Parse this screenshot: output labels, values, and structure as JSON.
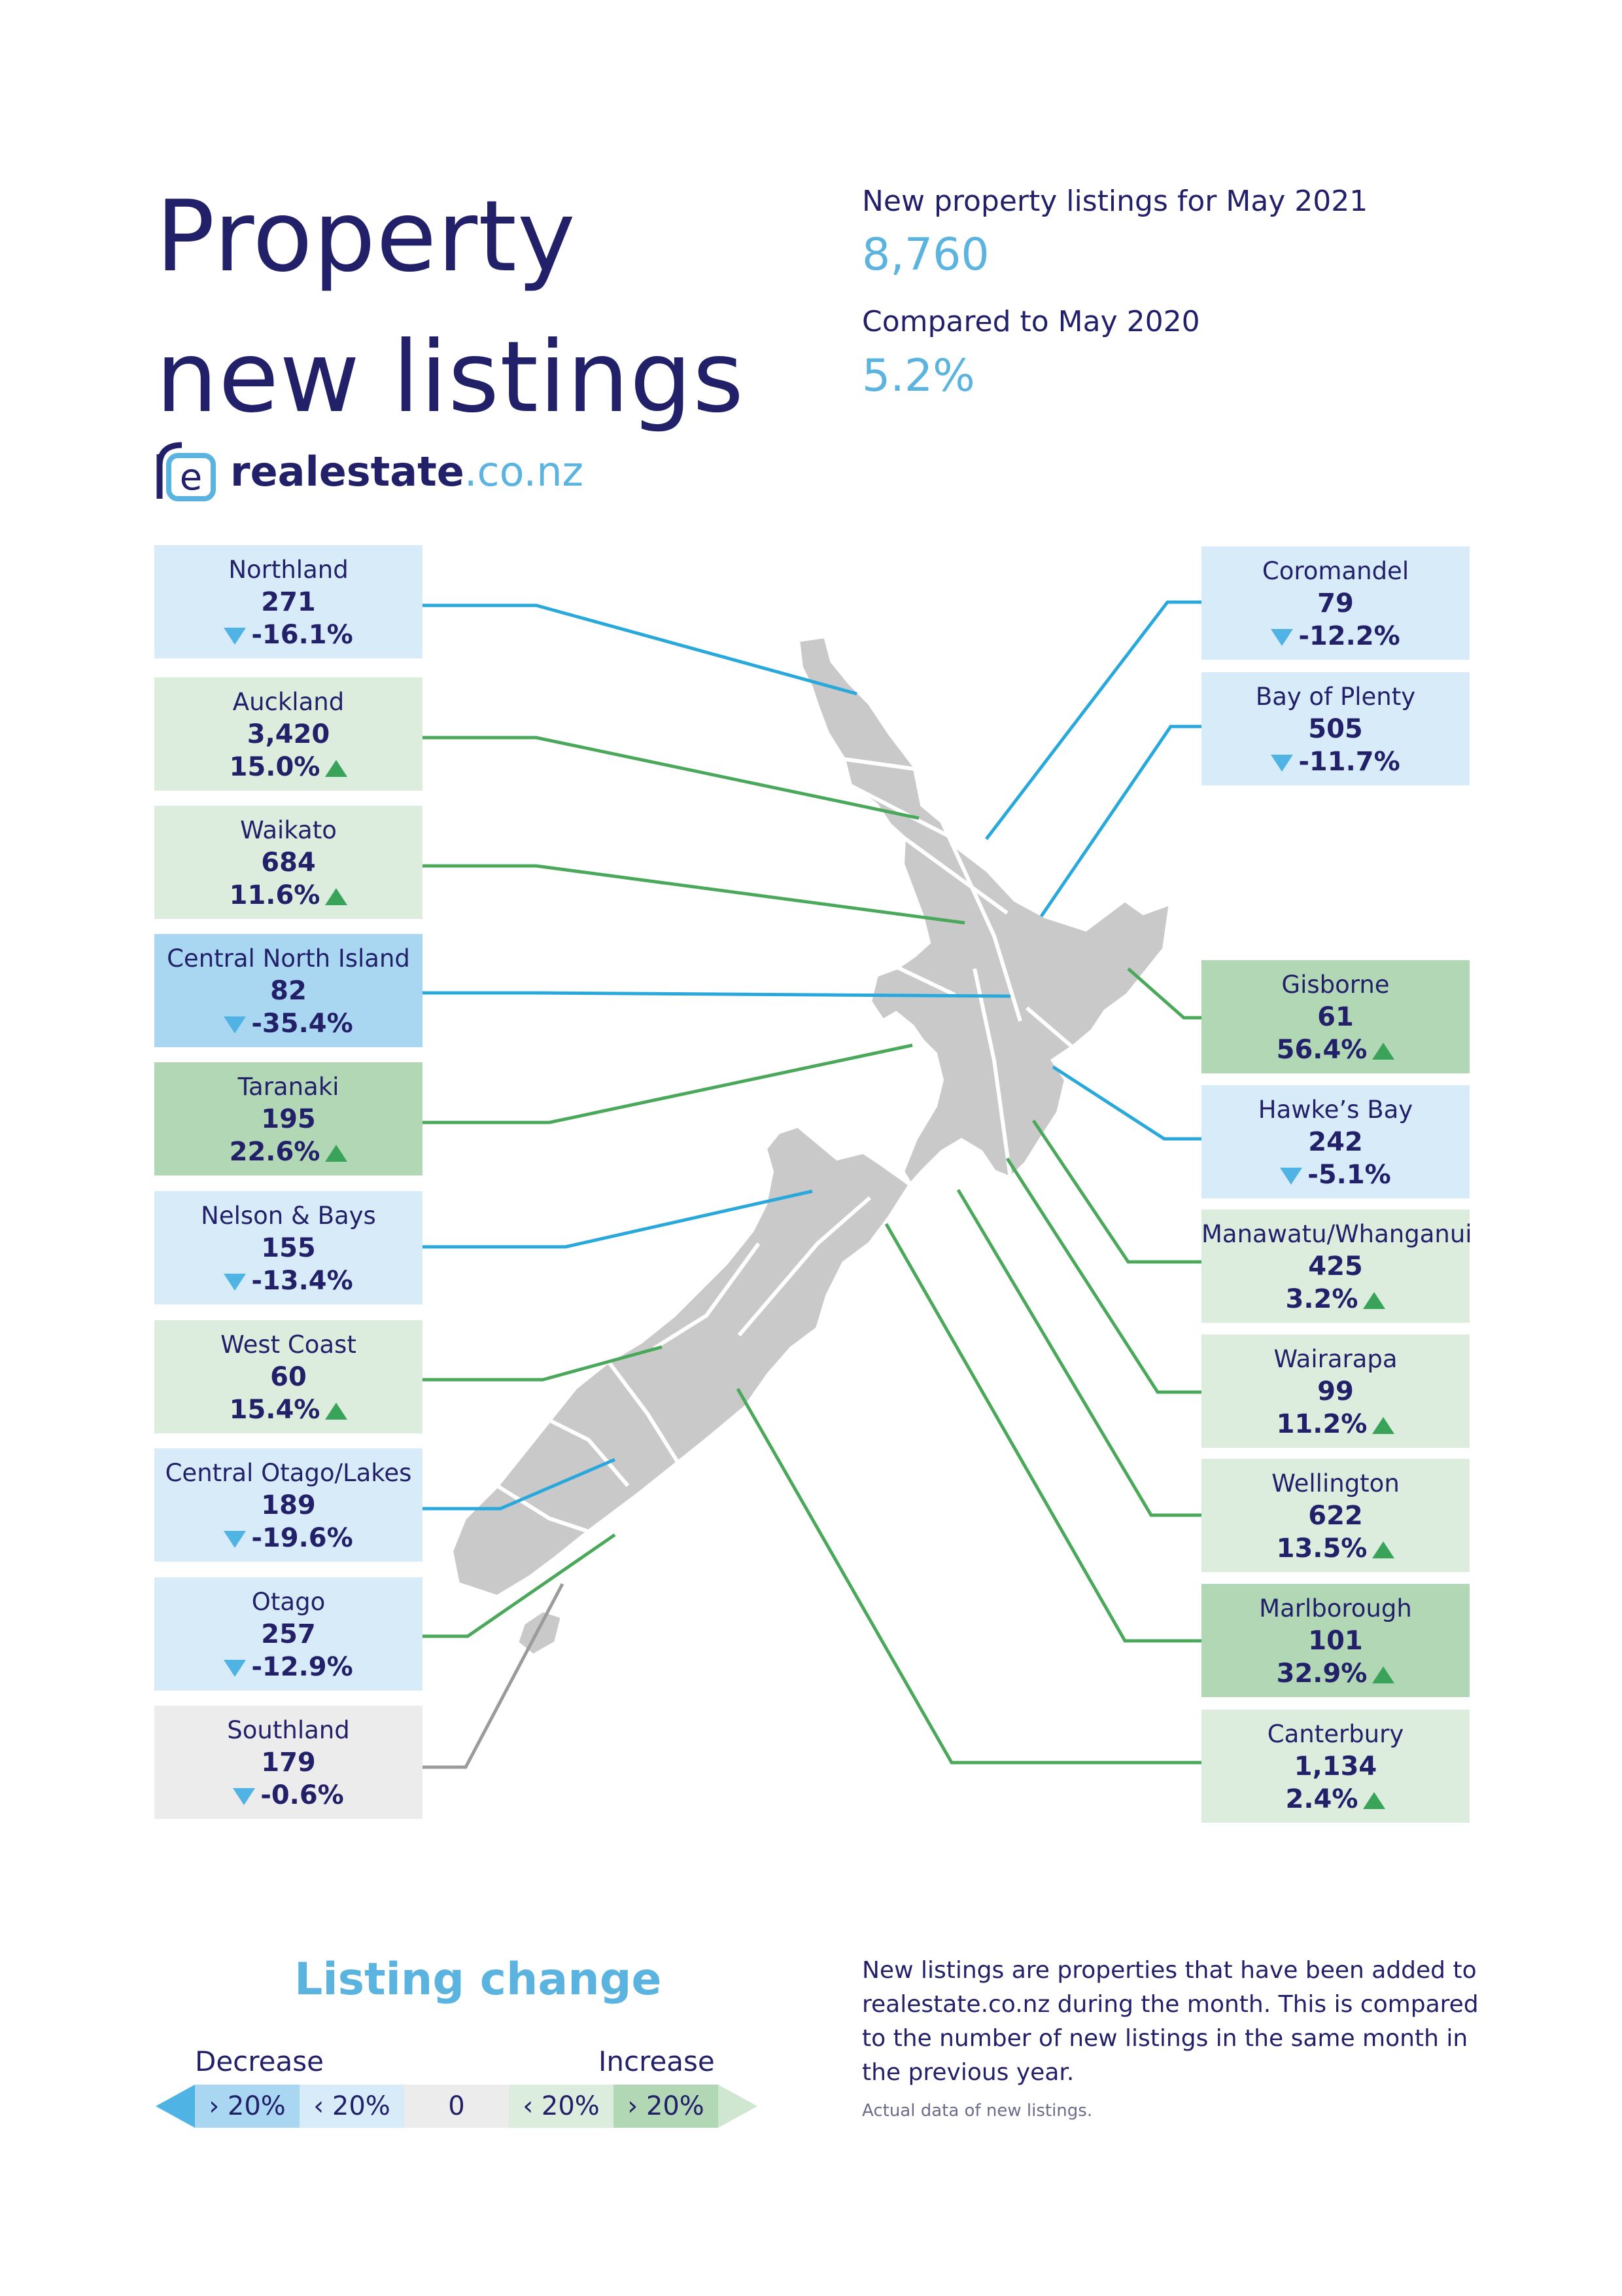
{
  "header": {
    "title_line1": "Property",
    "title_line2": "new listings",
    "listings_label": "New property listings for May 2021",
    "listings_value": "8,760",
    "compare_label": "Compared to May 2020",
    "compare_value": "5.2%"
  },
  "logo": {
    "mark": "re",
    "name": "realestate",
    "suffix": ".co.nz"
  },
  "regions": [
    {
      "name": "Northland",
      "count": "271",
      "change": "-16.1%",
      "direction": "down",
      "color": "#d7ebf8"
    },
    {
      "name": "Auckland",
      "count": "3,420",
      "change": "15.0%",
      "direction": "up",
      "color": "#dcedde"
    },
    {
      "name": "Waikato",
      "count": "684",
      "change": "11.6%",
      "direction": "up",
      "color": "#dcedde"
    },
    {
      "name": "Central North Island",
      "count": "82",
      "change": "-35.4%",
      "direction": "down",
      "color": "#a9d6f1"
    },
    {
      "name": "Taranaki",
      "count": "195",
      "change": "22.6%",
      "direction": "up",
      "color": "#b2d7b4"
    },
    {
      "name": "Nelson & Bays",
      "count": "155",
      "change": "-13.4%",
      "direction": "down",
      "color": "#d7ebf8"
    },
    {
      "name": "West Coast",
      "count": "60",
      "change": "15.4%",
      "direction": "up",
      "color": "#dcedde"
    },
    {
      "name": "Central Otago/Lakes",
      "count": "189",
      "change": "-19.6%",
      "direction": "down",
      "color": "#d7ebf8"
    },
    {
      "name": "Otago",
      "count": "257",
      "change": "-12.9%",
      "direction": "down",
      "color": "#d7ebf8"
    },
    {
      "name": "Southland",
      "count": "179",
      "change": "-0.6%",
      "direction": "down",
      "color": "#ececec"
    },
    {
      "name": "Coromandel",
      "count": "79",
      "change": "-12.2%",
      "direction": "down",
      "color": "#d7ebf8"
    },
    {
      "name": "Bay of Plenty",
      "count": "505",
      "change": "-11.7%",
      "direction": "down",
      "color": "#d7ebf8"
    },
    {
      "name": "Gisborne",
      "count": "61",
      "change": "56.4%",
      "direction": "up",
      "color": "#b2d7b4"
    },
    {
      "name": "Hawke’s Bay",
      "count": "242",
      "change": "-5.1%",
      "direction": "down",
      "color": "#d7ebf8"
    },
    {
      "name": "Manawatu/Whanganui",
      "count": "425",
      "change": "3.2%",
      "direction": "up",
      "color": "#dcedde"
    },
    {
      "name": "Wairarapa",
      "count": "99",
      "change": "11.2%",
      "direction": "up",
      "color": "#dcedde"
    },
    {
      "name": "Wellington",
      "count": "622",
      "change": "13.5%",
      "direction": "up",
      "color": "#dcedde"
    },
    {
      "name": "Marlborough",
      "count": "101",
      "change": "32.9%",
      "direction": "up",
      "color": "#b2d7b4"
    },
    {
      "name": "Canterbury",
      "count": "1,134",
      "change": "2.4%",
      "direction": "up",
      "color": "#dcedde"
    }
  ],
  "legend": {
    "title": "Listing change",
    "decrease_label": "Decrease",
    "increase_label": "Increase",
    "segments": [
      "› 20%",
      "‹ 20%",
      "0",
      "‹ 20%",
      "› 20%"
    ]
  },
  "footnote": {
    "text": "New listings are properties that have been added to realestate.co.nz during the month. This is compared to the number of new listings in the same month in the previous year.",
    "small": "Actual data of new listings."
  }
}
